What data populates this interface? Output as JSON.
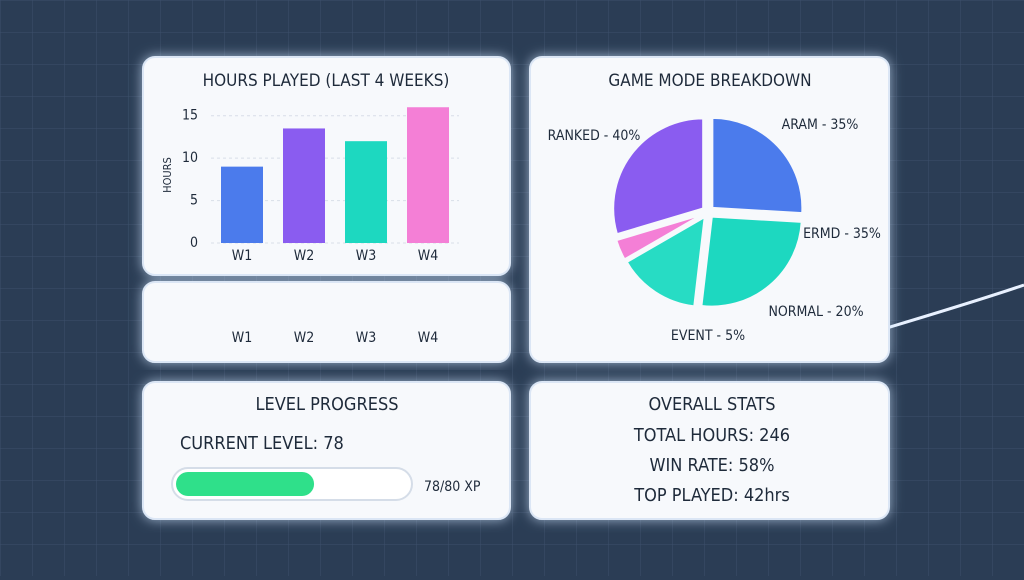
{
  "chart_data": [
    {
      "type": "bar",
      "title": "HOURS PLAYED (LAST 4 WEEKS)",
      "y_label": "HOURS",
      "categories": [
        "W1",
        "W2",
        "W3",
        "W4"
      ],
      "values": [
        9,
        13.5,
        12,
        16
      ],
      "colors": [
        "#4b7bec",
        "#8a5cf0",
        "#1dd8c0",
        "#f47fd6"
      ],
      "ylim": [
        0,
        16.5
      ],
      "yticks": [
        0,
        5,
        10,
        15
      ],
      "grid": true
    },
    {
      "type": "pie",
      "title": "GAME MODE BREAKDOWN",
      "values": [
        35,
        35,
        20,
        5,
        40
      ],
      "value_labels": [
        "ARAM - 35%",
        "ERMD - 35%",
        "NORMAL - 20%",
        "EVENT - 5%",
        "RANKED - 40%"
      ],
      "colors": [
        "#4b7bec",
        "#1dd8c0",
        "#27dcc4",
        "#f47fd6",
        "#8a5cf0"
      ]
    }
  ],
  "week_strip": {
    "labels": [
      "W1",
      "W2",
      "W3",
      "W4"
    ]
  },
  "level_progress": {
    "title": "LEVEL PROGRESS",
    "current_level": "CURRENT LEVEL: 78",
    "progress": 59,
    "progress_range": [
      0,
      100
    ],
    "xp": "78/80 XP",
    "color": "#2fe08a"
  },
  "overall_stats": {
    "title": "OVERALL STATS",
    "lines": [
      "TOTAL HOURS: 246",
      "WIN RATE: 58%",
      "TOP PLAYED: 42hrs"
    ]
  }
}
